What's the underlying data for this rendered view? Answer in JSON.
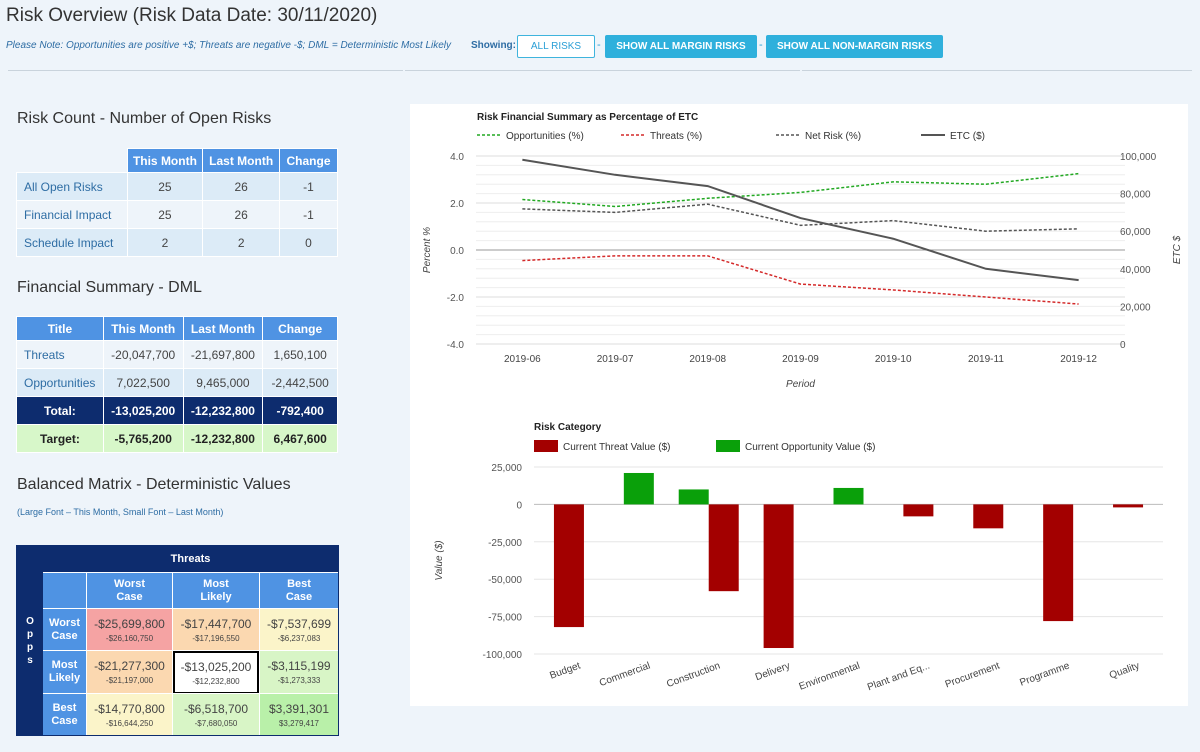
{
  "header": {
    "title": "Risk Overview (Risk Data Date: 30/11/2020)",
    "note": "Please Note: Opportunities are positive +$; Threats are negative -$; DML = Deterministic Most Likely",
    "showing_label": "Showing:",
    "buttons": {
      "all": "ALL RISKS",
      "margin": "SHOW ALL MARGIN RISKS",
      "non_margin": "SHOW ALL NON-MARGIN RISKS"
    },
    "separator": "-"
  },
  "risk_count": {
    "title": "Risk Count - Number of Open Risks",
    "columns": [
      "",
      "This Month",
      "Last Month",
      "Change"
    ],
    "rows": [
      {
        "label": "All Open Risks",
        "this_month": "25",
        "last_month": "26",
        "change": "-1"
      },
      {
        "label": "Financial Impact",
        "this_month": "25",
        "last_month": "26",
        "change": "-1"
      },
      {
        "label": "Schedule Impact",
        "this_month": "2",
        "last_month": "2",
        "change": "0"
      }
    ]
  },
  "financial_summary": {
    "title": "Financial Summary - DML",
    "columns": [
      "Title",
      "This Month",
      "Last Month",
      "Change"
    ],
    "rows": [
      {
        "label": "Threats",
        "this_month": "-20,047,700",
        "last_month": "-21,697,800",
        "change": "1,650,100"
      },
      {
        "label": "Opportunities",
        "this_month": "7,022,500",
        "last_month": "9,465,000",
        "change": "-2,442,500"
      }
    ],
    "total": {
      "label": "Total:",
      "this_month": "-13,025,200",
      "last_month": "-12,232,800",
      "change": "-792,400"
    },
    "target": {
      "label": "Target:",
      "this_month": "-5,765,200",
      "last_month": "-12,232,800",
      "change": "6,467,600"
    }
  },
  "matrix": {
    "title": "Balanced Matrix - Deterministic Values",
    "note": "(Large Font – This Month, Small Font – Last Month)",
    "opps_label": [
      "O",
      "p",
      "p",
      "s"
    ],
    "threats_label": "Threats",
    "col_headers": [
      [
        "Worst",
        "Case"
      ],
      [
        "Most",
        "Likely"
      ],
      [
        "Best",
        "Case"
      ]
    ],
    "row_headers": [
      [
        "Worst",
        "Case"
      ],
      [
        "Most",
        "Likely"
      ],
      [
        "Best",
        "Case"
      ]
    ],
    "cells": [
      [
        {
          "big": "-$25,699,800",
          "small": "-$26,160,750",
          "color": "#f5a3a3"
        },
        {
          "big": "-$17,447,700",
          "small": "-$17,196,550",
          "color": "#fbd8b0"
        },
        {
          "big": "-$7,537,699",
          "small": "-$6,237,083",
          "color": "#fbf4c9"
        }
      ],
      [
        {
          "big": "-$21,277,300",
          "small": "-$21,197,000",
          "color": "#fbd8b0"
        },
        {
          "big": "-$13,025,200",
          "small": "-$12,232,800",
          "color": "#ffffff"
        },
        {
          "big": "-$3,115,199",
          "small": "-$1,273,333",
          "color": "#d8f5c6"
        }
      ],
      [
        {
          "big": "-$14,770,800",
          "small": "-$16,644,250",
          "color": "#fbf4c9"
        },
        {
          "big": "-$6,518,700",
          "small": "-$7,680,050",
          "color": "#d8f5c6"
        },
        {
          "big": "$3,391,301",
          "small": "$3,279,417",
          "color": "#b9f0a9"
        }
      ]
    ]
  },
  "chart_data": [
    {
      "type": "line",
      "title": "Risk Financial Summary as Percentage of ETC",
      "xlabel": "Period",
      "ylabel": "Percent %",
      "y2label": "ETC $",
      "categories": [
        "2019-06",
        "2019-07",
        "2019-08",
        "2019-09",
        "2019-10",
        "2019-11",
        "2019-12"
      ],
      "ylim": [
        -4.0,
        4.0
      ],
      "y2lim": [
        0,
        100000
      ],
      "yticks": [
        "4.0",
        "2.0",
        "0.0",
        "-2.0",
        "-4.0"
      ],
      "y2ticks": [
        "100,000",
        "80,000",
        "60,000",
        "40,000",
        "20,000",
        "0"
      ],
      "legend_position": "top",
      "series": [
        {
          "name": "Opportunities (%)",
          "axis": "left",
          "color": "#22a822",
          "dash": true,
          "values": [
            2.15,
            1.85,
            2.2,
            2.45,
            2.9,
            2.8,
            3.25
          ]
        },
        {
          "name": "Threats (%)",
          "axis": "left",
          "color": "#d42a2a",
          "dash": true,
          "values": [
            -0.45,
            -0.25,
            -0.25,
            -1.45,
            -1.7,
            -2.0,
            -2.3
          ]
        },
        {
          "name": "Net Risk (%)",
          "axis": "left",
          "color": "#555555",
          "dash": true,
          "values": [
            1.75,
            1.6,
            1.95,
            1.05,
            1.25,
            0.8,
            0.9
          ]
        },
        {
          "name": "ETC ($)",
          "axis": "right",
          "color": "#555555",
          "dash": false,
          "values": [
            98000,
            90000,
            84000,
            67000,
            56000,
            40000,
            34000
          ]
        }
      ]
    },
    {
      "type": "bar",
      "title": "Risk Category",
      "ylabel": "Value ($)",
      "ylim": [
        -100000,
        25000
      ],
      "yticks": [
        25000,
        0,
        -25000,
        -50000,
        -75000,
        -100000
      ],
      "ytick_labels": [
        "25,000",
        "0",
        "-25,000",
        "-50,000",
        "-75,000",
        "-100,000"
      ],
      "legend_position": "top",
      "categories": [
        "Budget",
        "Commercial",
        "Construction",
        "Delivery",
        "Environmental",
        "Plant and Eq...",
        "Procurement",
        "Programme",
        "Quality"
      ],
      "series": [
        {
          "name": "Current Threat Value ($)",
          "color": "#a30000",
          "values": [
            -82000,
            0,
            -58000,
            -96000,
            0,
            -8000,
            -16000,
            -78000,
            -2000
          ]
        },
        {
          "name": "Current Opportunity Value ($)",
          "color": "#0aa00a",
          "values": [
            0,
            21000,
            10000,
            0,
            11000,
            0,
            0,
            0,
            0
          ]
        }
      ]
    }
  ]
}
